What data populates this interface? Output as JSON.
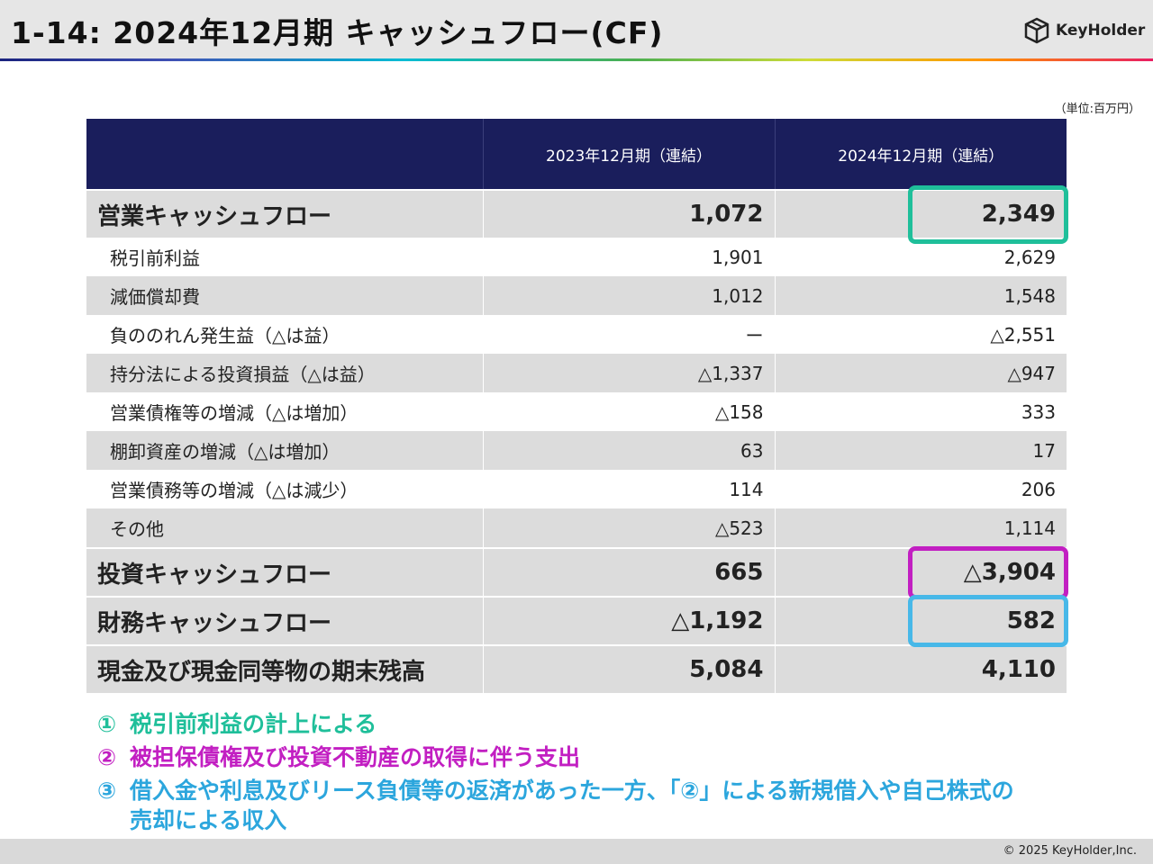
{
  "header": {
    "title": "1-14:  2024年12月期  キャッシュフロー(CF)",
    "logo_text": "KeyHolder"
  },
  "unit_label": "（単位:百万円）",
  "table": {
    "columns": [
      "",
      "2023年12月期（連結）",
      "2024年12月期（連結）"
    ],
    "rows": [
      {
        "label": "営業キャッシュフロー",
        "v2023": "1,072",
        "v2024": "2,349"
      },
      {
        "label": "税引前利益",
        "v2023": "1,901",
        "v2024": "2,629"
      },
      {
        "label": "減価償却費",
        "v2023": "1,012",
        "v2024": "1,548"
      },
      {
        "label": "負ののれん発生益（△は益）",
        "v2023": "ー",
        "v2024": "△2,551"
      },
      {
        "label": "持分法による投資損益（△は益）",
        "v2023": "△1,337",
        "v2024": "△947"
      },
      {
        "label": "営業債権等の増減（△は増加）",
        "v2023": "△158",
        "v2024": "333"
      },
      {
        "label": "棚卸資産の増減（△は増加）",
        "v2023": "63",
        "v2024": "17"
      },
      {
        "label": "営業債務等の増減（△は減少）",
        "v2023": "114",
        "v2024": "206"
      },
      {
        "label": "その他",
        "v2023": "△523",
        "v2024": "1,114"
      },
      {
        "label": "投資キャッシュフロー",
        "v2023": "665",
        "v2024": "△3,904"
      },
      {
        "label": "財務キャッシュフロー",
        "v2023": "△1,192",
        "v2024": "582"
      },
      {
        "label": "現金及び現金同等物の期末残高",
        "v2023": "5,084",
        "v2024": "4,110"
      }
    ]
  },
  "notes": [
    {
      "marker": "①",
      "text": "税引前利益の計上による"
    },
    {
      "marker": "②",
      "text": "被担保債権及び投資不動産の取得に伴う支出"
    },
    {
      "marker": "③",
      "text": "借入金や利息及びリース負債等の返済があった一方、「②」による新規借入や自己株式の",
      "text_cont": "売却による収入"
    }
  ],
  "colors": {
    "header_bg": "#1a1e5c",
    "note1": "#1fbf9a",
    "note2": "#c21fc2",
    "note3": "#2ca6dd"
  },
  "copyright": "© 2025 KeyHolder,Inc."
}
